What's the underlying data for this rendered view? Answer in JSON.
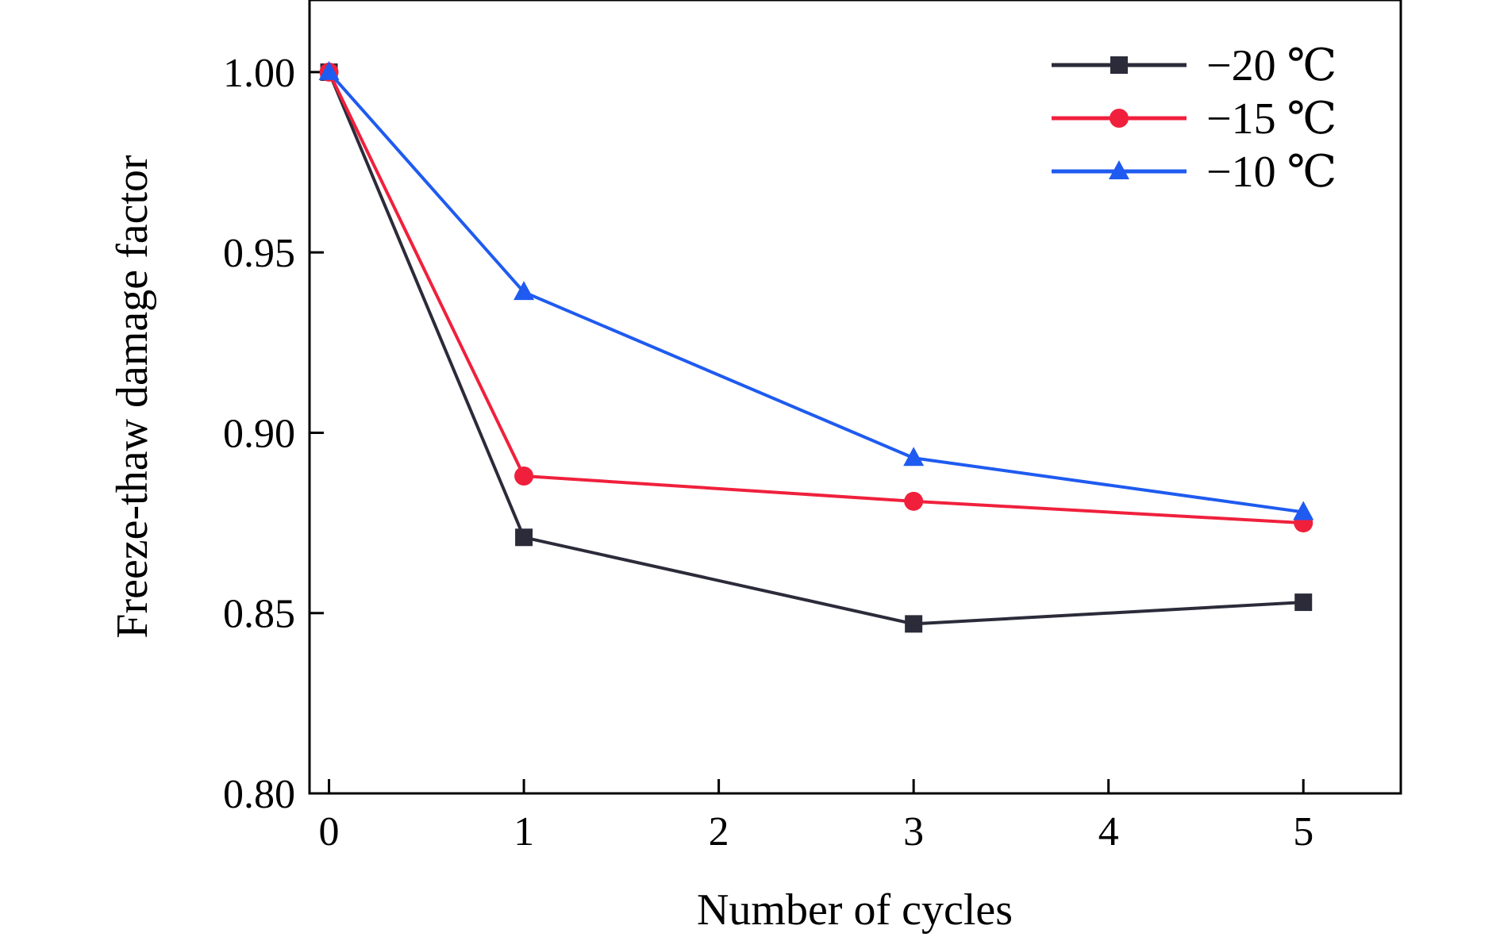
{
  "chart_data": {
    "type": "line",
    "title": "",
    "xlabel": "Number of cycles",
    "ylabel": "Freeze-thaw damage factor",
    "xlim": [
      -0.1,
      5.5
    ],
    "ylim": [
      0.8,
      1.02
    ],
    "xticks": [
      0,
      1,
      2,
      3,
      4,
      5
    ],
    "xtick_labels": [
      "0",
      "1",
      "2",
      "3",
      "4",
      "5"
    ],
    "yticks": [
      0.8,
      0.85,
      0.9,
      0.95,
      1.0
    ],
    "ytick_labels": [
      "0.80",
      "0.85",
      "0.90",
      "0.95",
      "1.00"
    ],
    "grid": false,
    "legend_position": "top-right",
    "x": [
      0,
      1,
      3,
      5
    ],
    "series": [
      {
        "name": "−20 ℃",
        "values": [
          1.0,
          0.871,
          0.847,
          0.853
        ],
        "color": "#2b2b3a",
        "marker": "square"
      },
      {
        "name": "−15 ℃",
        "values": [
          1.0,
          0.888,
          0.881,
          0.875
        ],
        "color": "#f0203c",
        "marker": "circle"
      },
      {
        "name": "−10 ℃",
        "values": [
          1.0,
          0.939,
          0.893,
          0.878
        ],
        "color": "#1f5bf0",
        "marker": "triangle"
      }
    ]
  }
}
